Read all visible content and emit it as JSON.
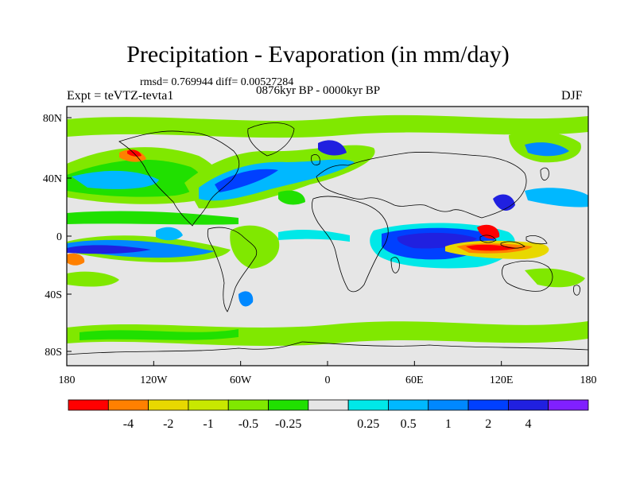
{
  "title": "Precipitation - Evaporation (in mm/day)",
  "stats": "rmsd= 0.769944 diff= 0.00527284",
  "experiment": "Expt = teVTZ-tevta1",
  "period": "0876kyr BP - 0000kyr BP",
  "season": "DJF",
  "lat_ticks": [
    "80N",
    "40N",
    "0",
    "40S",
    "80S"
  ],
  "lon_ticks": [
    "180",
    "120W",
    "60W",
    "0",
    "60E",
    "120E",
    "180"
  ],
  "colorbar": {
    "colors": [
      "#ff0000",
      "#ff8000",
      "#e8d800",
      "#c8e800",
      "#80e800",
      "#20e000",
      "#e6e6e6",
      "#00e8e8",
      "#00b8ff",
      "#0088ff",
      "#0040ff",
      "#2020e0",
      "#8020ff"
    ],
    "labels": [
      "-4",
      "-2",
      "-1",
      "-0.5",
      "-0.25",
      "0.25",
      "0.5",
      "1",
      "2",
      "4"
    ]
  }
}
